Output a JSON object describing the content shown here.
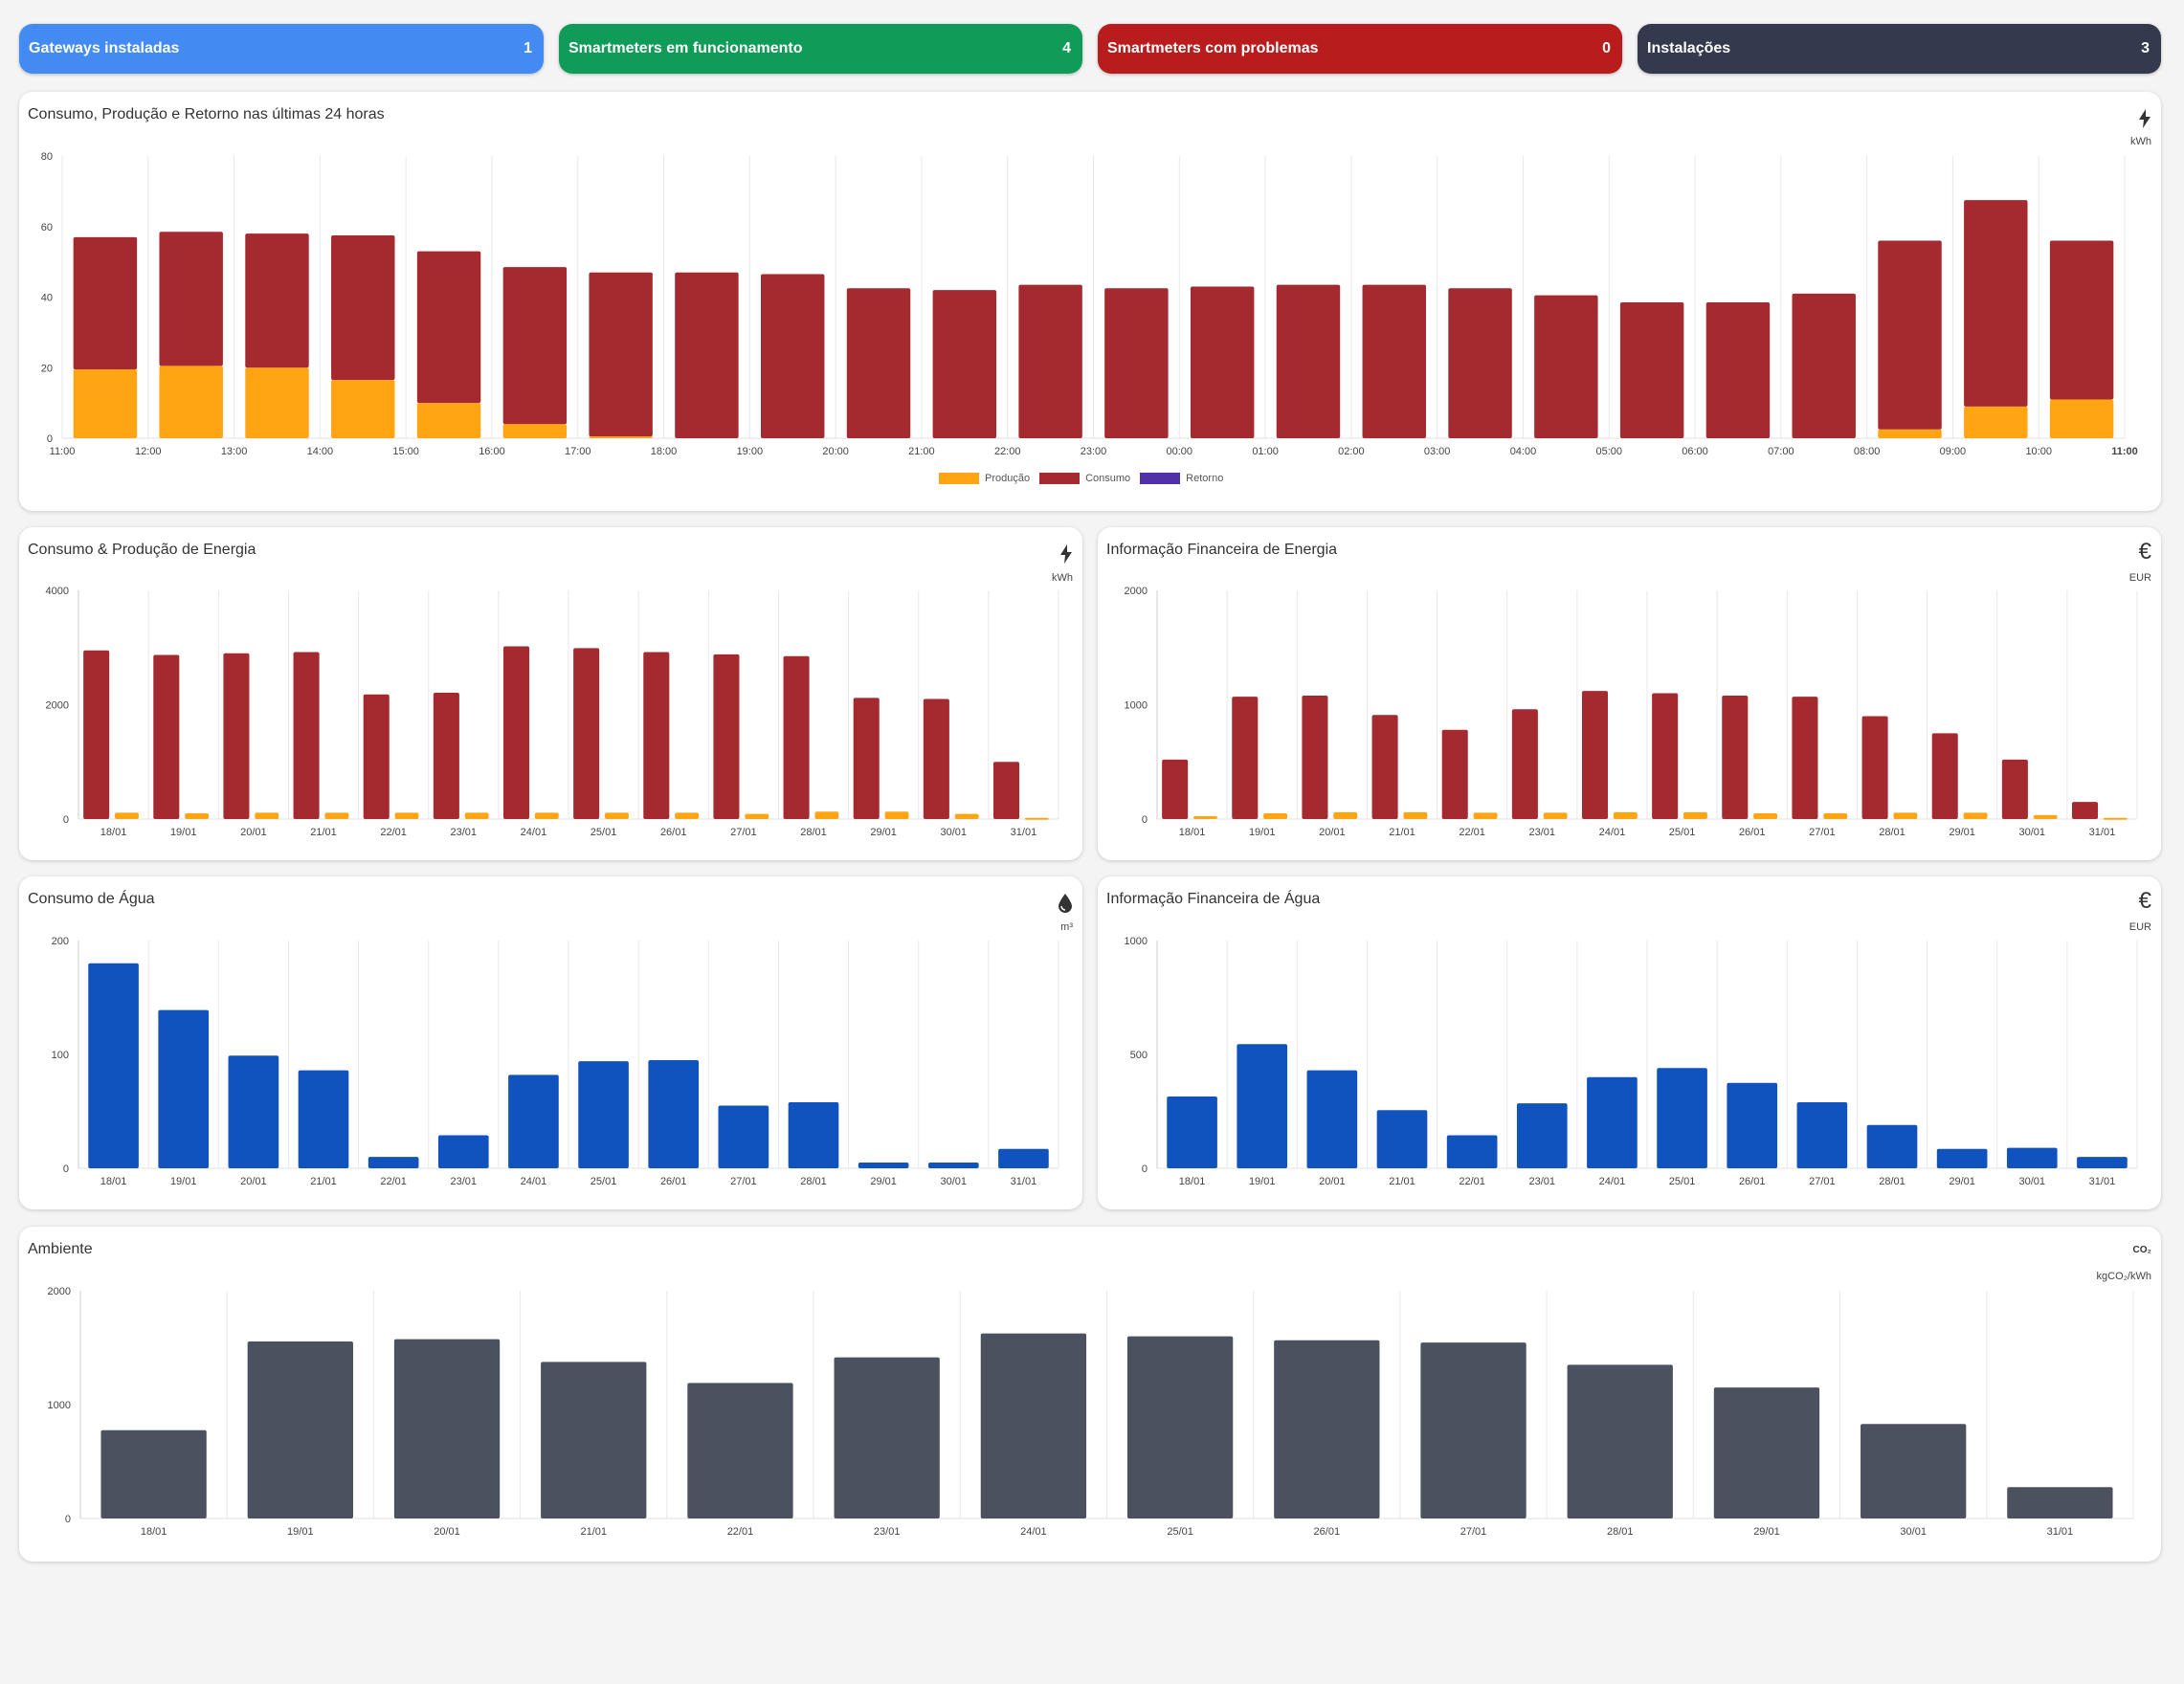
{
  "stats": [
    {
      "label": "Gateways instaladas",
      "value": "1",
      "color": "#448af3"
    },
    {
      "label": "Smartmeters em funcionamento",
      "value": "4",
      "color": "#109b58"
    },
    {
      "label": "Smartmeters com problemas",
      "value": "0",
      "color": "#b81c1c"
    },
    {
      "label": "Instalações",
      "value": "3",
      "color": "#343a4e"
    }
  ],
  "hourly": {
    "title": "Consumo, Produção e Retorno nas últimas 24 horas",
    "icon": "lightning-icon",
    "unit": "kWh",
    "legend": [
      "Produção",
      "Consumo",
      "Retorno"
    ]
  },
  "energy": {
    "title": "Consumo & Produção de Energia",
    "icon": "lightning-icon",
    "unit": "kWh"
  },
  "energy_fin": {
    "title": "Informação Financeira de Energia",
    "icon": "euro-icon",
    "unit": "EUR"
  },
  "water": {
    "title": "Consumo de Água",
    "icon": "water-drop-icon",
    "unit": "m³"
  },
  "water_fin": {
    "title": "Informação Financeira de Água",
    "icon": "euro-icon",
    "unit": "EUR"
  },
  "env": {
    "title": "Ambiente",
    "icon": "co2-icon",
    "unit": "kgCO₂/kWh"
  },
  "chart_data": [
    {
      "type": "bar",
      "stacked": true,
      "categories": [
        "11:00",
        "12:00",
        "13:00",
        "14:00",
        "15:00",
        "16:00",
        "17:00",
        "18:00",
        "19:00",
        "20:00",
        "21:00",
        "22:00",
        "23:00",
        "00:00",
        "01:00",
        "02:00",
        "03:00",
        "04:00",
        "05:00",
        "06:00",
        "07:00",
        "08:00",
        "09:00",
        "10:00"
      ],
      "end_label": "11:00",
      "series": [
        {
          "name": "Produção",
          "color": "#ffa514",
          "values": [
            19.5,
            20.5,
            20,
            16.5,
            10,
            4,
            0.5,
            0,
            0,
            0,
            0,
            0,
            0,
            0,
            0,
            0,
            0,
            0,
            0,
            0,
            0,
            2.5,
            9,
            11
          ]
        },
        {
          "name": "Consumo",
          "color": "#a52a30",
          "values": [
            37.5,
            38,
            38,
            41,
            43,
            44.5,
            46.5,
            47,
            46.5,
            42.5,
            42,
            43.5,
            42.5,
            43,
            43.5,
            43.5,
            42.5,
            40.5,
            38.5,
            38.5,
            41,
            53.5,
            58.5,
            45
          ]
        },
        {
          "name": "Retorno",
          "color": "#5131a8",
          "values": [
            0,
            0,
            0,
            0,
            0,
            0,
            0,
            0,
            0,
            0,
            0,
            0,
            0,
            0,
            0,
            0,
            0,
            0,
            0,
            0,
            0,
            0,
            0,
            0
          ]
        }
      ],
      "ylim": [
        0,
        80
      ],
      "yticks": [
        0,
        20,
        40,
        60,
        80
      ]
    },
    {
      "type": "bar",
      "categories": [
        "18/01",
        "19/01",
        "20/01",
        "21/01",
        "22/01",
        "23/01",
        "24/01",
        "25/01",
        "26/01",
        "27/01",
        "28/01",
        "29/01",
        "30/01",
        "31/01"
      ],
      "series": [
        {
          "color": "#a52a30",
          "values": [
            2950,
            2870,
            2900,
            2920,
            2180,
            2210,
            3020,
            2990,
            2920,
            2880,
            2850,
            2120,
            2100,
            1000
          ]
        },
        {
          "color": "#ffa514",
          "values": [
            110,
            100,
            110,
            110,
            110,
            110,
            110,
            110,
            110,
            90,
            130,
            130,
            90,
            20
          ]
        }
      ],
      "ylim": [
        0,
        4000
      ],
      "yticks": [
        0,
        2000,
        4000
      ]
    },
    {
      "type": "bar",
      "categories": [
        "18/01",
        "19/01",
        "20/01",
        "21/01",
        "22/01",
        "23/01",
        "24/01",
        "25/01",
        "26/01",
        "27/01",
        "28/01",
        "29/01",
        "30/01",
        "31/01"
      ],
      "series": [
        {
          "color": "#a52a30",
          "values": [
            520,
            1070,
            1080,
            910,
            780,
            960,
            1120,
            1100,
            1080,
            1070,
            900,
            750,
            520,
            150
          ]
        },
        {
          "color": "#ffa514",
          "values": [
            25,
            50,
            60,
            60,
            55,
            55,
            60,
            60,
            50,
            50,
            55,
            55,
            35,
            10
          ]
        }
      ],
      "ylim": [
        0,
        2000
      ],
      "yticks": [
        0,
        1000,
        2000
      ]
    },
    {
      "type": "bar",
      "categories": [
        "18/01",
        "19/01",
        "20/01",
        "21/01",
        "22/01",
        "23/01",
        "24/01",
        "25/01",
        "26/01",
        "27/01",
        "28/01",
        "29/01",
        "30/01",
        "31/01"
      ],
      "series": [
        {
          "color": "#1153be",
          "values": [
            180,
            139,
            99,
            86,
            10,
            29,
            82,
            94,
            95,
            55,
            58,
            5,
            5,
            17
          ]
        }
      ],
      "ylim": [
        0,
        200
      ],
      "yticks": [
        0,
        100,
        200
      ]
    },
    {
      "type": "bar",
      "categories": [
        "18/01",
        "19/01",
        "20/01",
        "21/01",
        "22/01",
        "23/01",
        "24/01",
        "25/01",
        "26/01",
        "27/01",
        "28/01",
        "29/01",
        "30/01",
        "31/01"
      ],
      "series": [
        {
          "color": "#1153be",
          "values": [
            315,
            545,
            430,
            255,
            145,
            285,
            400,
            440,
            375,
            290,
            190,
            85,
            90,
            50
          ]
        }
      ],
      "ylim": [
        0,
        1000
      ],
      "yticks": [
        0,
        500,
        1000
      ]
    },
    {
      "type": "bar",
      "categories": [
        "18/01",
        "19/01",
        "20/01",
        "21/01",
        "22/01",
        "23/01",
        "24/01",
        "25/01",
        "26/01",
        "27/01",
        "28/01",
        "29/01",
        "30/01",
        "31/01"
      ],
      "series": [
        {
          "color": "#4b515f",
          "values": [
            775,
            1555,
            1575,
            1375,
            1190,
            1415,
            1625,
            1600,
            1565,
            1545,
            1350,
            1150,
            830,
            275
          ]
        }
      ],
      "ylim": [
        0,
        2000
      ],
      "yticks": [
        0,
        1000,
        2000
      ]
    }
  ]
}
